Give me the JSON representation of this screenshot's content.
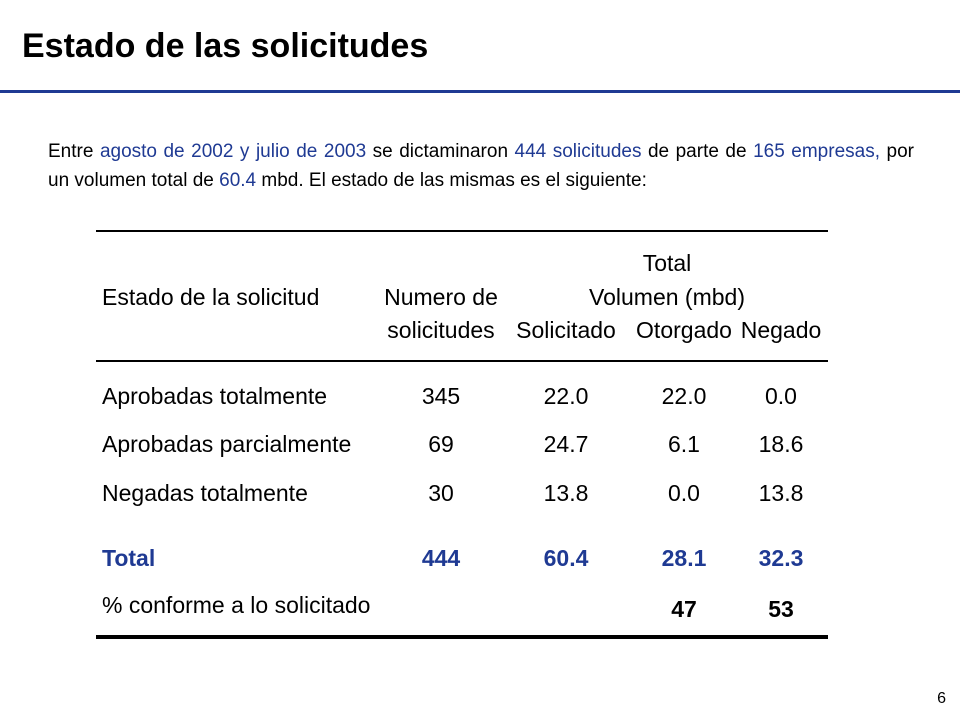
{
  "slide": {
    "title": "Estado de las solicitudes",
    "page_number": "6",
    "accent_color": "#1f3a93"
  },
  "intro": {
    "t1": "Entre ",
    "h1": "agosto de 2002",
    "t2": " ",
    "h2": "y",
    "t3": " ",
    "h3": "julio de 2003",
    "t4": " se dictaminaron ",
    "h4": "444 solicitudes",
    "t5": " de parte de ",
    "h5": "165 empresas,",
    "t6": " por un volumen total de ",
    "h6": "60.4",
    "t7": " mbd. El estado de las mismas es el siguiente:"
  },
  "table": {
    "header": {
      "total": "Total",
      "col1": "Estado de la solicitud",
      "col2_line1": "Numero de",
      "col2_line2": "solicitudes",
      "volume_group": "Volumen (mbd)",
      "col3": "Solicitado",
      "col4": "Otorgado",
      "col5": "Negado"
    },
    "rows": [
      {
        "estado": "Aprobadas totalmente",
        "numero": "345",
        "solicitado": "22.0",
        "otorgado": "22.0",
        "negado": "0.0"
      },
      {
        "estado": "Aprobadas parcialmente",
        "numero": "69",
        "solicitado": "24.7",
        "otorgado": "6.1",
        "negado": "18.6"
      },
      {
        "estado": "Negadas totalmente",
        "numero": "30",
        "solicitado": "13.8",
        "otorgado": "0.0",
        "negado": "13.8"
      }
    ],
    "total": {
      "estado": "Total",
      "numero": "444",
      "solicitado": "60.4",
      "otorgado": "28.1",
      "negado": "32.3"
    },
    "percent": {
      "estado": "% conforme a lo solicitado",
      "otorgado": "47",
      "negado": "53"
    }
  }
}
